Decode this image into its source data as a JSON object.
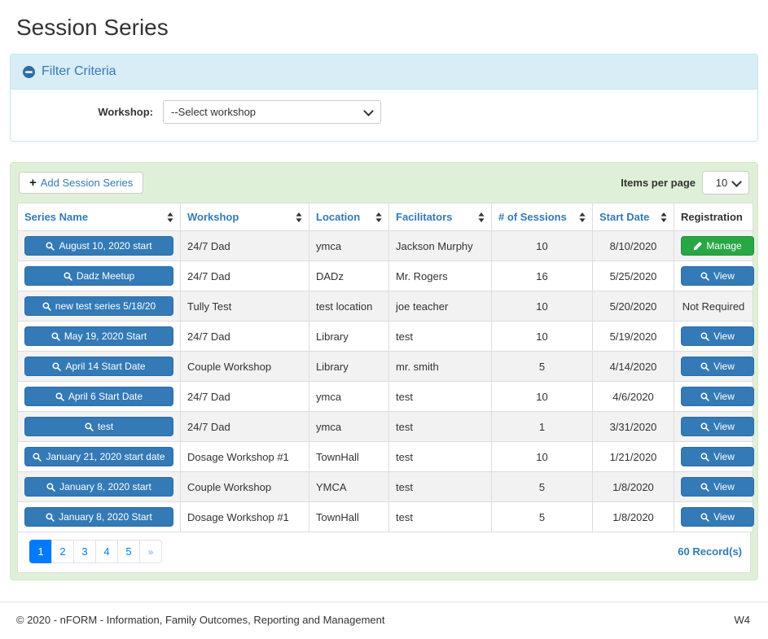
{
  "page_title": "Session Series",
  "filter": {
    "title": "Filter Criteria",
    "workshop_label": "Workshop:",
    "workshop_selected": "--Select workshop"
  },
  "toolbar": {
    "add_button_plus": "+",
    "add_button_label": "Add Session Series",
    "items_per_page_label": "Items per page",
    "items_per_page_value": "10"
  },
  "table": {
    "columns": [
      {
        "label": "Series Name",
        "sortable": true
      },
      {
        "label": "Workshop",
        "sortable": true
      },
      {
        "label": "Location",
        "sortable": true
      },
      {
        "label": "Facilitators",
        "sortable": true
      },
      {
        "label": "# of Sessions",
        "sortable": true
      },
      {
        "label": "Start Date",
        "sortable": true
      },
      {
        "label": "Registration",
        "sortable": false
      }
    ],
    "rows": [
      {
        "series_name": "August 10, 2020 start",
        "workshop": "24/7 Dad",
        "location": "ymca",
        "facilitators": "Jackson Murphy",
        "sessions": "10",
        "start_date": "8/10/2020",
        "registration": {
          "type": "manage",
          "label": "Manage"
        }
      },
      {
        "series_name": "Dadz Meetup",
        "workshop": "24/7 Dad",
        "location": "DADz",
        "facilitators": "Mr. Rogers",
        "sessions": "16",
        "start_date": "5/25/2020",
        "registration": {
          "type": "view",
          "label": "View"
        }
      },
      {
        "series_name": "new test series 5/18/20",
        "workshop": "Tully Test",
        "location": "test location",
        "facilitators": "joe teacher",
        "sessions": "10",
        "start_date": "5/20/2020",
        "registration": {
          "type": "text",
          "label": "Not Required"
        }
      },
      {
        "series_name": "May 19, 2020 Start",
        "workshop": "24/7 Dad",
        "location": "Library",
        "facilitators": "test",
        "sessions": "10",
        "start_date": "5/19/2020",
        "registration": {
          "type": "view",
          "label": "View"
        }
      },
      {
        "series_name": "April 14 Start Date",
        "workshop": "Couple Workshop",
        "location": "Library",
        "facilitators": "mr. smith",
        "sessions": "5",
        "start_date": "4/14/2020",
        "registration": {
          "type": "view",
          "label": "View"
        }
      },
      {
        "series_name": "April 6 Start Date",
        "workshop": "24/7 Dad",
        "location": "ymca",
        "facilitators": "test",
        "sessions": "10",
        "start_date": "4/6/2020",
        "registration": {
          "type": "view",
          "label": "View"
        }
      },
      {
        "series_name": "test",
        "workshop": "24/7 Dad",
        "location": "ymca",
        "facilitators": "test",
        "sessions": "1",
        "start_date": "3/31/2020",
        "registration": {
          "type": "view",
          "label": "View"
        }
      },
      {
        "series_name": "January 21, 2020 start date",
        "workshop": "Dosage Workshop #1",
        "location": "TownHall",
        "facilitators": "test",
        "sessions": "10",
        "start_date": "1/21/2020",
        "registration": {
          "type": "view",
          "label": "View"
        }
      },
      {
        "series_name": "January 8, 2020 start",
        "workshop": "Couple Workshop",
        "location": "YMCA",
        "facilitators": "test",
        "sessions": "5",
        "start_date": "1/8/2020",
        "registration": {
          "type": "view",
          "label": "View"
        }
      },
      {
        "series_name": "January 8, 2020 Start",
        "workshop": "Dosage Workshop #1",
        "location": "TownHall",
        "facilitators": "test",
        "sessions": "5",
        "start_date": "1/8/2020",
        "registration": {
          "type": "view",
          "label": "View"
        }
      }
    ]
  },
  "pagination": {
    "pages": [
      "1",
      "2",
      "3",
      "4",
      "5",
      "»"
    ],
    "active": "1",
    "record_count": "60 Record(s)"
  },
  "footer": {
    "copyright": "© 2020 - nFORM - Information, Family Outcomes, Reporting and Management",
    "environment": "W4"
  },
  "colors": {
    "primary_blue": "#337ab7",
    "primary_blue_border": "#2e6da4",
    "success_green": "#28a745",
    "pagination_active_blue": "#007bff",
    "filter_header_bg": "#d9edf7",
    "filter_border": "#bce8f1",
    "panel_green_bg": "#dff0d8",
    "panel_green_border": "#d6e9c6",
    "row_stripe": "#f2f2f2"
  }
}
